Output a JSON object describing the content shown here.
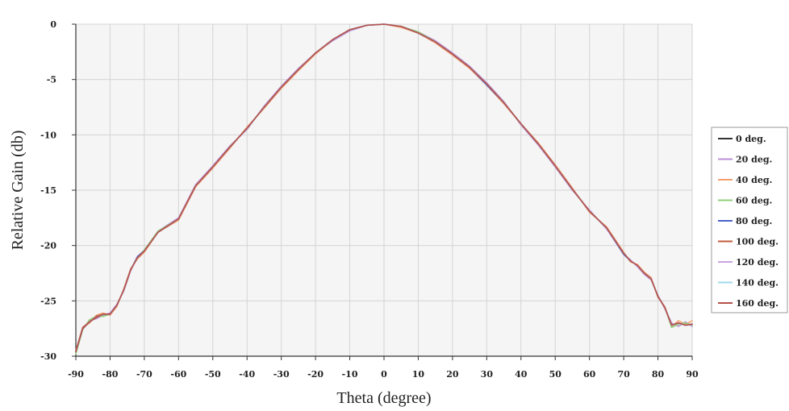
{
  "chart_data": {
    "type": "line",
    "title": "",
    "xlabel": "Theta (degree)",
    "ylabel": "Relative Gain (db)",
    "xlim": [
      -90,
      90
    ],
    "ylim": [
      -30,
      0
    ],
    "xticks": [
      "-90",
      "-80",
      "-70",
      "-60",
      "-50",
      "-40",
      "-30",
      "-20",
      "-10",
      "0",
      "10",
      "20",
      "30",
      "40",
      "50",
      "60",
      "70",
      "80",
      "90"
    ],
    "yticks": [
      "0",
      "-5",
      "-10",
      "-15",
      "-20",
      "-25",
      "-30"
    ],
    "grid": true,
    "legend_position": "right",
    "x": [
      -90,
      -88,
      -86,
      -84,
      -82,
      -80,
      -78,
      -76,
      -74,
      -72,
      -70,
      -66,
      -60,
      -55,
      -50,
      -45,
      -40,
      -35,
      -30,
      -25,
      -20,
      -15,
      -10,
      -5,
      0,
      5,
      10,
      15,
      20,
      25,
      30,
      35,
      40,
      45,
      50,
      55,
      60,
      65,
      70,
      72,
      74,
      76,
      78,
      80,
      82,
      84,
      86,
      88,
      90
    ],
    "series": [
      {
        "name": "0 deg.",
        "color": "#333333",
        "values": [
          -29.6,
          -27.5,
          -26.9,
          -26.5,
          -26.2,
          -26.2,
          -25.4,
          -24.0,
          -22.2,
          -21.1,
          -20.5,
          -18.8,
          -17.6,
          -14.6,
          -12.9,
          -11.1,
          -9.4,
          -7.5,
          -5.7,
          -4.1,
          -2.6,
          -1.4,
          -0.5,
          -0.1,
          0.0,
          -0.2,
          -0.8,
          -1.6,
          -2.7,
          -3.9,
          -5.4,
          -7.1,
          -9.0,
          -10.8,
          -12.8,
          -14.9,
          -16.9,
          -18.4,
          -20.7,
          -21.4,
          -21.8,
          -22.5,
          -23.0,
          -24.6,
          -25.6,
          -27.2,
          -27.0,
          -27.2,
          -27.1
        ]
      },
      {
        "name": "20 deg.",
        "color": "#b98fd6",
        "values": [
          -29.7,
          -27.6,
          -26.8,
          -26.6,
          -26.3,
          -26.1,
          -25.3,
          -24.1,
          -22.3,
          -21.0,
          -20.4,
          -18.7,
          -17.5,
          -14.5,
          -12.8,
          -11.0,
          -9.5,
          -7.4,
          -5.6,
          -4.0,
          -2.6,
          -1.5,
          -0.6,
          -0.1,
          0.0,
          -0.2,
          -0.7,
          -1.5,
          -2.6,
          -3.8,
          -5.3,
          -7.0,
          -9.1,
          -10.9,
          -12.9,
          -15.0,
          -16.8,
          -18.5,
          -20.8,
          -21.3,
          -21.9,
          -22.6,
          -23.1,
          -24.5,
          -25.7,
          -27.0,
          -27.3,
          -26.9,
          -27.3
        ]
      },
      {
        "name": "40 deg.",
        "color": "#f4a070",
        "values": [
          -29.5,
          -27.4,
          -27.0,
          -26.3,
          -26.1,
          -26.3,
          -25.5,
          -23.9,
          -22.1,
          -21.2,
          -20.6,
          -18.8,
          -17.7,
          -14.7,
          -13.0,
          -11.2,
          -9.3,
          -7.6,
          -5.8,
          -4.2,
          -2.7,
          -1.4,
          -0.5,
          -0.1,
          0.0,
          -0.3,
          -0.8,
          -1.7,
          -2.8,
          -4.0,
          -5.5,
          -7.2,
          -9.0,
          -10.7,
          -12.7,
          -14.8,
          -17.0,
          -18.3,
          -20.6,
          -21.5,
          -21.7,
          -22.4,
          -22.9,
          -24.7,
          -25.5,
          -27.3,
          -26.8,
          -27.1,
          -26.8
        ]
      },
      {
        "name": "60 deg.",
        "color": "#8fcf7a",
        "values": [
          -29.8,
          -27.6,
          -26.7,
          -26.4,
          -26.4,
          -26.2,
          -25.4,
          -24.0,
          -22.2,
          -21.1,
          -20.4,
          -18.7,
          -17.6,
          -14.6,
          -12.9,
          -11.1,
          -9.4,
          -7.5,
          -5.7,
          -4.1,
          -2.6,
          -1.4,
          -0.5,
          -0.1,
          0.0,
          -0.2,
          -0.7,
          -1.6,
          -2.7,
          -3.9,
          -5.4,
          -7.1,
          -9.0,
          -10.8,
          -12.8,
          -14.9,
          -16.9,
          -18.4,
          -20.7,
          -21.4,
          -21.8,
          -22.5,
          -23.0,
          -24.6,
          -25.6,
          -27.4,
          -27.1,
          -27.0,
          -27.2
        ]
      },
      {
        "name": "80 deg.",
        "color": "#4a62c9",
        "values": [
          -29.6,
          -27.5,
          -26.9,
          -26.5,
          -26.2,
          -26.2,
          -25.4,
          -24.0,
          -22.2,
          -21.0,
          -20.5,
          -18.8,
          -17.6,
          -14.6,
          -12.9,
          -11.1,
          -9.4,
          -7.5,
          -5.7,
          -4.1,
          -2.6,
          -1.4,
          -0.5,
          -0.1,
          0.0,
          -0.2,
          -0.8,
          -1.6,
          -2.7,
          -3.9,
          -5.5,
          -7.1,
          -9.0,
          -10.8,
          -12.8,
          -14.9,
          -16.9,
          -18.4,
          -20.8,
          -21.4,
          -21.8,
          -22.5,
          -23.0,
          -24.6,
          -25.6,
          -27.2,
          -27.0,
          -27.2,
          -27.1
        ]
      },
      {
        "name": "100 deg.",
        "color": "#c0583e",
        "values": [
          -29.5,
          -27.4,
          -26.9,
          -26.4,
          -26.2,
          -26.2,
          -25.4,
          -24.0,
          -22.2,
          -21.1,
          -20.5,
          -18.8,
          -17.6,
          -14.6,
          -12.9,
          -11.1,
          -9.4,
          -7.5,
          -5.7,
          -4.1,
          -2.6,
          -1.4,
          -0.5,
          -0.1,
          0.0,
          -0.2,
          -0.8,
          -1.6,
          -2.7,
          -3.9,
          -5.4,
          -7.1,
          -9.0,
          -10.8,
          -12.8,
          -14.9,
          -16.9,
          -18.4,
          -20.7,
          -21.4,
          -21.8,
          -22.5,
          -23.0,
          -24.6,
          -25.6,
          -27.2,
          -27.0,
          -27.2,
          -27.1
        ]
      },
      {
        "name": "120 deg.",
        "color": "#c9a3e0",
        "values": [
          -29.6,
          -27.5,
          -26.9,
          -26.5,
          -26.2,
          -26.2,
          -25.4,
          -24.0,
          -22.2,
          -21.1,
          -20.5,
          -18.8,
          -17.6,
          -14.6,
          -12.9,
          -11.1,
          -9.4,
          -7.5,
          -5.7,
          -4.1,
          -2.6,
          -1.4,
          -0.5,
          -0.1,
          0.0,
          -0.2,
          -0.8,
          -1.6,
          -2.7,
          -3.9,
          -5.4,
          -7.1,
          -9.0,
          -10.8,
          -12.8,
          -14.9,
          -16.9,
          -18.4,
          -20.7,
          -21.4,
          -21.8,
          -22.5,
          -23.0,
          -24.6,
          -25.6,
          -27.2,
          -27.0,
          -27.2,
          -27.1
        ]
      },
      {
        "name": "140 deg.",
        "color": "#9fd8e8",
        "values": [
          -29.6,
          -27.5,
          -26.9,
          -26.5,
          -26.2,
          -26.2,
          -25.4,
          -24.0,
          -22.2,
          -21.1,
          -20.5,
          -18.8,
          -17.6,
          -14.6,
          -12.9,
          -11.1,
          -9.4,
          -7.5,
          -5.7,
          -4.1,
          -2.6,
          -1.4,
          -0.5,
          -0.1,
          0.0,
          -0.2,
          -0.8,
          -1.6,
          -2.7,
          -3.9,
          -5.4,
          -7.1,
          -9.0,
          -10.8,
          -12.8,
          -14.9,
          -16.9,
          -18.4,
          -20.7,
          -21.4,
          -21.8,
          -22.5,
          -23.0,
          -24.6,
          -25.6,
          -27.2,
          -27.0,
          -27.2,
          -27.1
        ]
      },
      {
        "name": "160 deg.",
        "color": "#b5504a",
        "values": [
          -29.6,
          -27.5,
          -26.9,
          -26.5,
          -26.2,
          -26.2,
          -25.4,
          -24.0,
          -22.2,
          -21.1,
          -20.5,
          -18.8,
          -17.6,
          -14.6,
          -12.9,
          -11.1,
          -9.4,
          -7.5,
          -5.7,
          -4.1,
          -2.6,
          -1.4,
          -0.5,
          -0.1,
          0.0,
          -0.2,
          -0.8,
          -1.6,
          -2.7,
          -3.9,
          -5.4,
          -7.1,
          -9.0,
          -10.8,
          -12.8,
          -14.9,
          -16.9,
          -18.4,
          -20.7,
          -21.4,
          -21.8,
          -22.5,
          -23.0,
          -24.6,
          -25.6,
          -27.2,
          -27.0,
          -27.2,
          -27.1
        ]
      }
    ]
  }
}
